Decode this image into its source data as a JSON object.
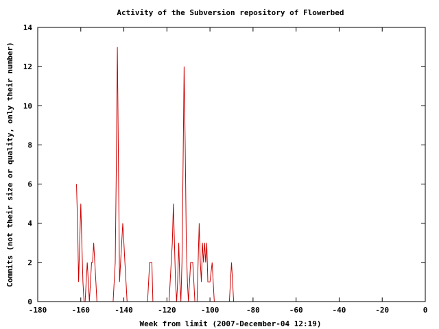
{
  "chart_data": {
    "type": "line",
    "title": "Activity of the Subversion repository of Flowerbed",
    "xlabel": "Week from limit (2007-December-04 12:19)",
    "ylabel": "Commits (not their size or quality, only their number)",
    "xlim": [
      -180,
      0
    ],
    "ylim": [
      0,
      14
    ],
    "xticks": [
      -180,
      -160,
      -140,
      -120,
      -100,
      -80,
      -60,
      -40,
      -20,
      0
    ],
    "yticks": [
      0,
      2,
      4,
      6,
      8,
      10,
      12,
      14
    ],
    "grid": false,
    "legend": "none",
    "series": [
      {
        "color": "#cc0000",
        "points": [
          [
            -162,
            6
          ],
          [
            -161.5,
            4
          ],
          [
            -161,
            1
          ],
          [
            -160.5,
            3
          ],
          [
            -160,
            5
          ],
          [
            -159.5,
            3
          ],
          [
            -159,
            1
          ],
          [
            -158.5,
            0
          ],
          [
            -158,
            0
          ],
          [
            -157.5,
            1
          ],
          [
            -157,
            2
          ],
          [
            -156.5,
            1
          ],
          [
            -156,
            0
          ],
          [
            -155.5,
            1
          ],
          [
            -155,
            2
          ],
          [
            -154.5,
            2
          ],
          [
            -154,
            3
          ],
          [
            -153.5,
            2
          ],
          [
            -153,
            1
          ],
          [
            -152.5,
            0
          ],
          [
            -146,
            0
          ],
          [
            -145,
            0
          ],
          [
            -144,
            2
          ],
          [
            -143.5,
            7
          ],
          [
            -143,
            13
          ],
          [
            -142.5,
            7
          ],
          [
            -142,
            1
          ],
          [
            -141.5,
            2
          ],
          [
            -141,
            3
          ],
          [
            -140.5,
            4
          ],
          [
            -140,
            3
          ],
          [
            -139.5,
            2
          ],
          [
            -139,
            1
          ],
          [
            -138.5,
            0
          ],
          [
            -129,
            0
          ],
          [
            -128,
            2
          ],
          [
            -127,
            2
          ],
          [
            -126.5,
            0
          ],
          [
            -119,
            0
          ],
          [
            -118,
            2
          ],
          [
            -117.5,
            3
          ],
          [
            -117,
            5
          ],
          [
            -116.5,
            3
          ],
          [
            -116,
            1
          ],
          [
            -115.5,
            0
          ],
          [
            -115,
            1
          ],
          [
            -114.5,
            3
          ],
          [
            -114,
            1
          ],
          [
            -113.5,
            0
          ],
          [
            -113,
            2
          ],
          [
            -112.5,
            7
          ],
          [
            -112,
            12
          ],
          [
            -111.5,
            8
          ],
          [
            -111,
            3
          ],
          [
            -110.5,
            1
          ],
          [
            -110,
            0
          ],
          [
            -109.5,
            1
          ],
          [
            -109,
            2
          ],
          [
            -108.5,
            2
          ],
          [
            -108,
            2
          ],
          [
            -107.5,
            1
          ],
          [
            -107,
            0
          ],
          [
            -106,
            0
          ],
          [
            -105.5,
            2
          ],
          [
            -105,
            4
          ],
          [
            -104.5,
            2
          ],
          [
            -104,
            1
          ],
          [
            -103.5,
            3
          ],
          [
            -103,
            2
          ],
          [
            -102.5,
            3
          ],
          [
            -102,
            2
          ],
          [
            -101.5,
            3
          ],
          [
            -101,
            1
          ],
          [
            -100.5,
            1
          ],
          [
            -100,
            1
          ],
          [
            -99,
            2
          ],
          [
            -98.5,
            1
          ],
          [
            -98,
            0
          ],
          [
            -91,
            0
          ],
          [
            -90,
            2
          ],
          [
            -89.5,
            1
          ],
          [
            -89,
            0
          ]
        ]
      }
    ]
  }
}
